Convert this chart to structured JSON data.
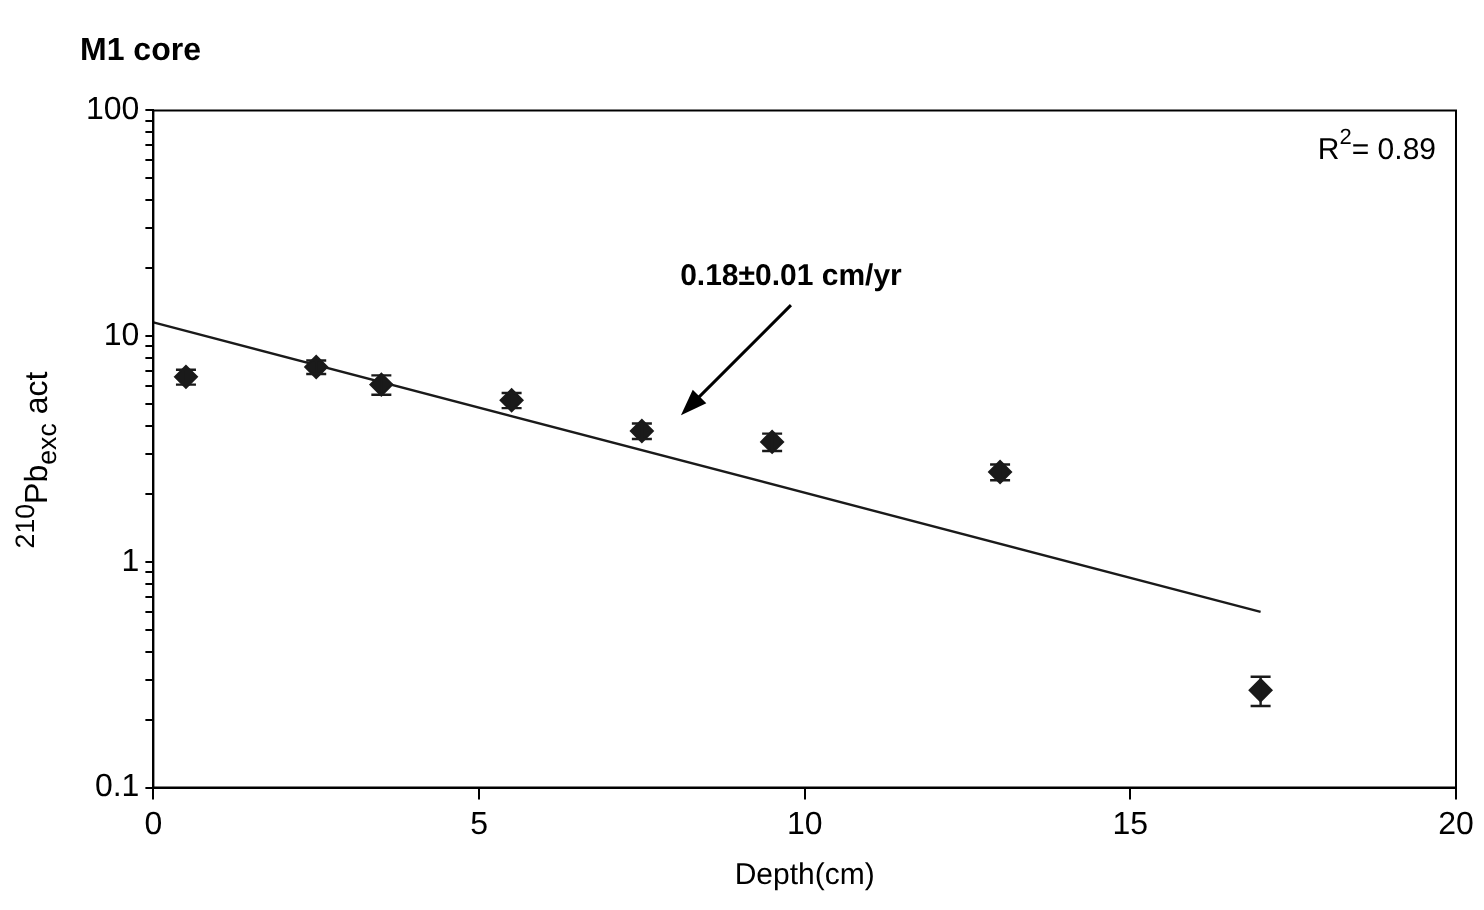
{
  "chart_data": {
    "type": "scatter",
    "title": "M1 core",
    "xlabel": "Depth(cm)",
    "ylabel": "$^{210}$Pb$_{exc}$ act",
    "log": "y",
    "grid": false,
    "legend": false,
    "marker": "diamond",
    "xlim": [
      0,
      20
    ],
    "xticks": [
      0,
      5,
      10,
      15,
      20
    ],
    "ylim": [
      0.1,
      100
    ],
    "yticks": [
      0.1,
      {
        "value": 0.2,
        "label": null
      },
      {
        "value": 0.3,
        "label": null
      },
      {
        "value": 0.4,
        "label": null
      },
      {
        "value": 0.5,
        "label": null
      },
      {
        "value": 0.6,
        "label": null
      },
      {
        "value": 0.7,
        "label": null
      },
      {
        "value": 0.8,
        "label": null
      },
      {
        "value": 0.9,
        "label": null
      },
      1,
      {
        "value": 2,
        "label": null
      },
      {
        "value": 3,
        "label": null
      },
      {
        "value": 4,
        "label": null
      },
      {
        "value": 5,
        "label": null
      },
      {
        "value": 6,
        "label": null
      },
      {
        "value": 7,
        "label": null
      },
      {
        "value": 8,
        "label": null
      },
      {
        "value": 9,
        "label": null
      },
      10,
      {
        "value": 20,
        "label": null
      },
      {
        "value": 30,
        "label": null
      },
      {
        "value": 40,
        "label": null
      },
      {
        "value": 50,
        "label": null
      },
      {
        "value": 60,
        "label": null
      },
      {
        "value": 70,
        "label": null
      },
      {
        "value": 80,
        "label": null
      },
      {
        "value": 90,
        "label": null
      },
      100
    ],
    "series": [
      {
        "color": "#1a1a1a",
        "x": [
          0.5,
          2.5,
          3.5,
          5.5,
          7.5,
          9.5,
          13,
          17
        ],
        "values": [
          6.6,
          7.3,
          6.1,
          5.2,
          3.8,
          3.4,
          2.5,
          0.27
        ],
        "errors": [
          0.5,
          0.5,
          0.6,
          0.4,
          0.3,
          0.3,
          0.2,
          0.04
        ]
      },
      {
        "type": "line",
        "color": "#1a1a1a",
        "x": [
          0,
          17
        ],
        "values": [
          11.5,
          0.6
        ],
        "marker": "none"
      }
    ],
    "annotations": [
      "0.18±0.01 cm/yr",
      "R$^{2}$= 0.89"
    ]
  }
}
